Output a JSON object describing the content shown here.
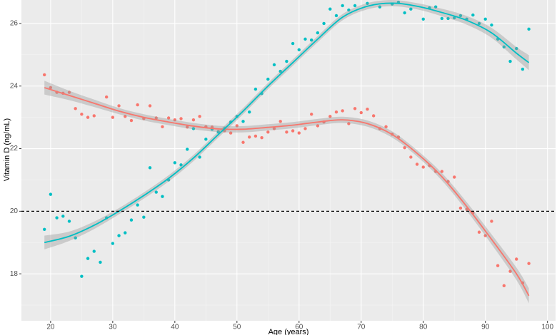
{
  "chart_data": {
    "type": "scatter",
    "xlabel": "Age (years)",
    "ylabel": "Vitamin D (ng/mL)",
    "xlim": [
      15.3,
      101.3
    ],
    "ylim": [
      16.5,
      26.75
    ],
    "xticks": [
      20,
      30,
      40,
      50,
      60,
      70,
      80,
      90,
      100
    ],
    "yticks": [
      18,
      20,
      22,
      24,
      26
    ],
    "xminor_ticks": [
      25,
      35,
      45,
      55,
      65,
      75,
      85,
      95
    ],
    "yminor_ticks": [
      17,
      19,
      21,
      23,
      25
    ],
    "grid": true,
    "hline": 20,
    "series": [
      {
        "color": "#f8766d",
        "x": [
          19,
          20,
          21,
          22,
          23,
          24,
          25,
          26,
          27,
          29,
          30,
          31,
          32,
          33,
          34,
          35,
          36,
          37,
          38,
          39,
          40,
          41,
          42,
          43,
          44,
          45,
          46,
          47,
          48,
          49,
          50,
          51,
          52,
          53,
          54,
          55,
          56,
          57,
          58,
          59,
          60,
          61,
          62,
          63,
          64,
          65,
          66,
          67,
          68,
          69,
          70,
          71,
          72,
          73,
          74,
          75,
          76,
          77,
          78,
          79,
          80,
          81,
          82,
          83,
          84,
          85,
          86,
          87,
          88,
          89,
          90,
          91,
          92,
          93,
          94,
          95,
          96,
          97
        ],
        "values": [
          24.36,
          23.95,
          23.8,
          23.77,
          23.8,
          23.28,
          23.1,
          23.0,
          23.05,
          23.65,
          23.0,
          23.37,
          23.03,
          22.9,
          23.4,
          22.96,
          23.37,
          22.98,
          22.7,
          22.98,
          22.92,
          22.96,
          22.69,
          22.92,
          23.03,
          22.7,
          22.69,
          22.55,
          22.57,
          22.5,
          22.73,
          22.2,
          22.37,
          22.4,
          22.35,
          22.53,
          22.64,
          22.87,
          22.53,
          22.57,
          22.5,
          22.64,
          23.1,
          22.73,
          22.85,
          23.03,
          23.17,
          23.21,
          22.8,
          23.28,
          23.15,
          23.26,
          23.05,
          22.64,
          22.7,
          22.46,
          22.37,
          22.03,
          21.73,
          21.5,
          21.41,
          21.46,
          21.27,
          21.27,
          20.95,
          21.09,
          20.1,
          20.06,
          19.95,
          19.33,
          19.22,
          19.68,
          18.26,
          17.62,
          18.08,
          18.47,
          17.71,
          18.33
        ],
        "fit_x": [
          19,
          23,
          27,
          31,
          35,
          39,
          43,
          47,
          51,
          55,
          59,
          63,
          67,
          71,
          75,
          79,
          83,
          87,
          91,
          95,
          97
        ],
        "fit": [
          23.95,
          23.7,
          23.45,
          23.2,
          23.0,
          22.85,
          22.72,
          22.63,
          22.62,
          22.68,
          22.75,
          22.85,
          22.92,
          22.8,
          22.45,
          21.85,
          21.1,
          20.15,
          19.1,
          18.0,
          17.3
        ],
        "band": [
          0.22,
          0.15,
          0.12,
          0.1,
          0.1,
          0.1,
          0.1,
          0.1,
          0.1,
          0.1,
          0.1,
          0.1,
          0.1,
          0.1,
          0.1,
          0.1,
          0.12,
          0.14,
          0.16,
          0.2,
          0.24
        ]
      },
      {
        "color": "#00bfc4",
        "x": [
          19,
          20,
          21,
          22,
          23,
          24,
          25,
          26,
          27,
          28,
          29,
          30,
          31,
          32,
          33,
          34,
          35,
          36,
          37,
          38,
          39,
          40,
          41,
          42,
          43,
          44,
          45,
          46,
          47,
          48,
          49,
          50,
          51,
          52,
          53,
          54,
          55,
          56,
          57,
          58,
          59,
          60,
          61,
          62,
          63,
          64,
          65,
          66,
          67,
          68,
          69,
          71,
          73,
          75,
          76,
          77,
          78,
          80,
          81,
          82,
          83,
          84,
          85,
          86,
          87,
          88,
          89,
          90,
          91,
          92,
          93,
          94,
          95,
          96,
          97
        ],
        "values": [
          19.42,
          20.54,
          19.79,
          19.84,
          19.68,
          19.15,
          17.92,
          18.49,
          18.72,
          18.37,
          19.79,
          18.97,
          19.22,
          19.31,
          19.72,
          20.2,
          19.81,
          21.39,
          20.61,
          20.47,
          21.0,
          21.55,
          21.48,
          21.98,
          22.64,
          21.73,
          22.3,
          22.62,
          22.53,
          22.64,
          22.85,
          23.03,
          22.87,
          23.17,
          23.9,
          23.76,
          24.22,
          24.68,
          24.47,
          24.79,
          25.36,
          25.16,
          25.5,
          25.47,
          25.7,
          26.0,
          26.46,
          26.25,
          26.57,
          26.43,
          26.57,
          26.64,
          26.53,
          26.62,
          26.68,
          26.34,
          26.46,
          26.14,
          26.5,
          26.53,
          26.16,
          26.16,
          26.18,
          26.25,
          26.14,
          26.27,
          26.0,
          26.14,
          25.95,
          25.5,
          25.25,
          24.79,
          25.2,
          24.54,
          25.82
        ],
        "fit_x": [
          19,
          23,
          27,
          31,
          35,
          39,
          43,
          47,
          51,
          55,
          59,
          63,
          67,
          71,
          75,
          79,
          83,
          87,
          91,
          95,
          97
        ],
        "fit": [
          19.0,
          19.2,
          19.55,
          20.0,
          20.5,
          21.05,
          21.7,
          22.45,
          23.2,
          24.0,
          24.75,
          25.5,
          26.2,
          26.55,
          26.65,
          26.55,
          26.35,
          26.1,
          25.7,
          25.05,
          24.75
        ],
        "band": [
          0.22,
          0.15,
          0.12,
          0.1,
          0.1,
          0.1,
          0.1,
          0.1,
          0.1,
          0.1,
          0.1,
          0.1,
          0.1,
          0.1,
          0.1,
          0.1,
          0.12,
          0.14,
          0.16,
          0.2,
          0.24
        ]
      }
    ]
  }
}
